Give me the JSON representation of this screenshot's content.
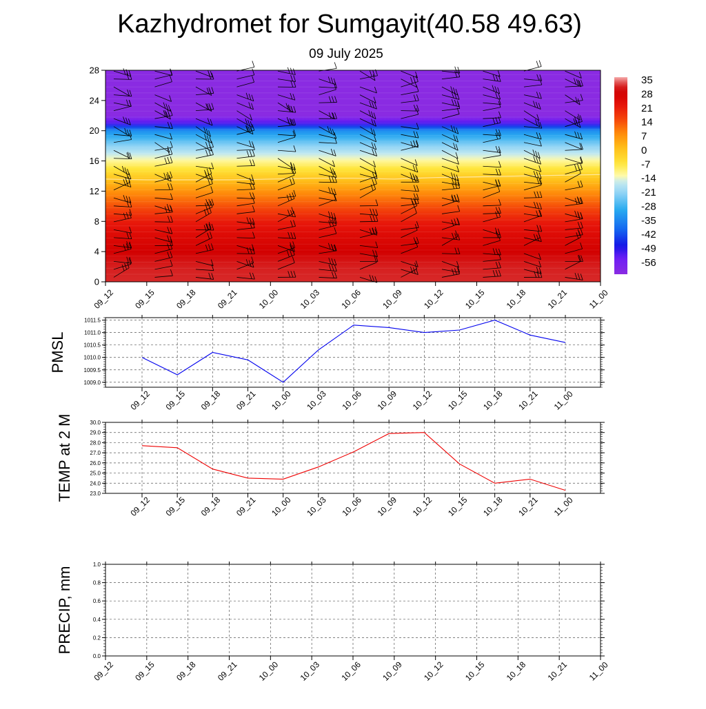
{
  "title": "Kazhydromet for Sumgayit(40.58 49.63)",
  "subtitle": "09 July 2025",
  "chart_data": [
    {
      "id": "cross-section",
      "type": "heatmap",
      "title": "",
      "xlabel": "",
      "ylabel": "",
      "x_ticks": [
        "09_12",
        "09_15",
        "09_18",
        "09_21",
        "10_00",
        "10_03",
        "10_06",
        "10_09",
        "10_12",
        "10_15",
        "10_18",
        "10_21",
        "11_00"
      ],
      "y_ticks": [
        0,
        4,
        8,
        12,
        16,
        20,
        24,
        28
      ],
      "ylim": [
        0,
        28
      ],
      "colorbar": {
        "labels": [
          "35",
          "28",
          "21",
          "14",
          "7",
          "0",
          "-7",
          "-14",
          "-21",
          "-28",
          "-35",
          "-42",
          "-49",
          "-56"
        ],
        "range": [
          -60,
          38
        ]
      },
      "temperature_profile": {
        "levels": [
          0,
          2,
          4,
          6,
          8,
          10,
          12,
          14,
          16,
          18,
          20,
          21,
          22,
          24,
          26,
          28
        ],
        "values": [
          34,
          33,
          30,
          27,
          23,
          16,
          9,
          0,
          -10,
          -20,
          -32,
          -50,
          -60,
          -60,
          -60,
          -60
        ]
      },
      "freezing_level": [
        13.6,
        13.5,
        13.5,
        13.5,
        13.6,
        13.7,
        13.7,
        13.6,
        13.8,
        13.9,
        14.0,
        14.1,
        14.2
      ],
      "wind_barbs": "present"
    },
    {
      "id": "pmsl",
      "type": "line",
      "ylabel": "PMSL",
      "categories": [
        "09_12",
        "09_15",
        "09_18",
        "09_21",
        "10_00",
        "10_03",
        "10_06",
        "10_09",
        "10_12",
        "10_15",
        "10_18",
        "10_21",
        "11_00"
      ],
      "series": [
        {
          "color": "#0000ee",
          "values": [
            1010.0,
            1009.3,
            1010.2,
            1009.9,
            1009.0,
            1010.3,
            1011.3,
            1011.2,
            1011.0,
            1011.1,
            1011.5,
            1010.9,
            1010.6
          ]
        }
      ],
      "ylim": [
        1008.8,
        1011.6
      ],
      "y_ticks": [
        "1009.0",
        "1009.5",
        "1010.0",
        "1010.5",
        "1011.0",
        "1011.5"
      ],
      "grid": true
    },
    {
      "id": "temp2m",
      "type": "line",
      "ylabel": "TEMP at 2 M",
      "categories": [
        "09_12",
        "09_15",
        "09_18",
        "09_21",
        "10_00",
        "10_03",
        "10_06",
        "10_09",
        "10_12",
        "10_15",
        "10_18",
        "10_21",
        "11_00"
      ],
      "series": [
        {
          "color": "#ee0000",
          "values": [
            27.7,
            27.5,
            25.4,
            24.5,
            24.4,
            25.6,
            27.1,
            28.9,
            29.0,
            25.9,
            24.0,
            24.4,
            23.3
          ]
        }
      ],
      "ylim": [
        23.0,
        30.0
      ],
      "y_ticks": [
        "23.0",
        "24.0",
        "25.0",
        "26.0",
        "27.0",
        "28.0",
        "29.0",
        "30.0"
      ],
      "grid": true
    },
    {
      "id": "precip",
      "type": "line",
      "ylabel": "PRECIP, mm",
      "categories": [
        "09_12",
        "09_15",
        "09_18",
        "09_21",
        "10_00",
        "10_03",
        "10_06",
        "10_09",
        "10_12",
        "10_15",
        "10_18",
        "10_21",
        "11_00"
      ],
      "series": [
        {
          "color": "#007700",
          "values": [
            0,
            0,
            0,
            0,
            0,
            0,
            0,
            0,
            0,
            0,
            0,
            0,
            0
          ]
        }
      ],
      "ylim": [
        0,
        1.0
      ],
      "y_ticks": [
        "0.0",
        "0.2",
        "0.4",
        "0.6",
        "0.8",
        "1.0"
      ],
      "grid": true
    }
  ]
}
